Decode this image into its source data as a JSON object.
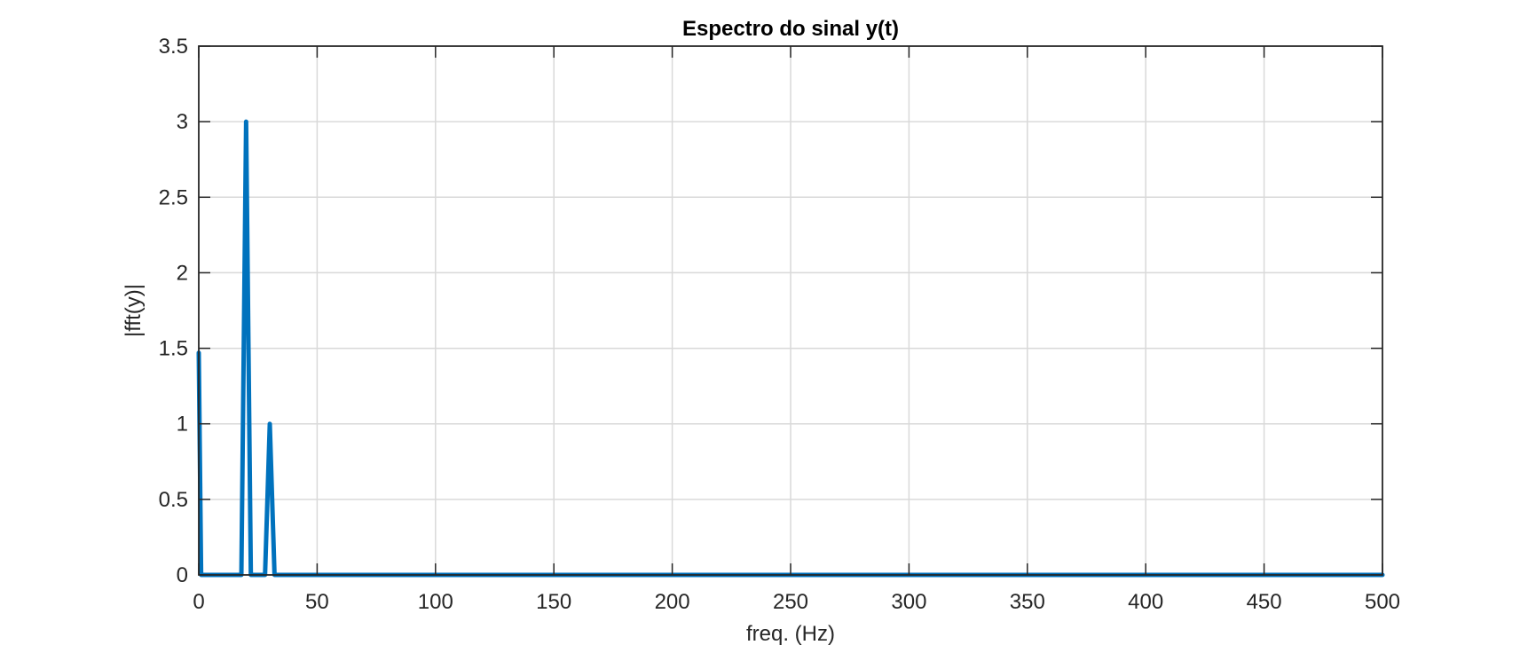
{
  "chart_data": {
    "type": "line",
    "title": "Espectro do sinal y(t)",
    "xlabel": "freq. (Hz)",
    "ylabel": "|fft(y)|",
    "xlim": [
      0,
      500
    ],
    "ylim": [
      0,
      3.5
    ],
    "grid": true,
    "x_ticks": [
      0,
      50,
      100,
      150,
      200,
      250,
      300,
      350,
      400,
      450,
      500
    ],
    "x_tick_labels": [
      "0",
      "50",
      "100",
      "150",
      "200",
      "250",
      "300",
      "350",
      "400",
      "450",
      "500"
    ],
    "y_ticks": [
      0,
      0.5,
      1,
      1.5,
      2,
      2.5,
      3,
      3.5
    ],
    "y_tick_labels": [
      "0",
      "0.5",
      "1",
      "1.5",
      "2",
      "2.5",
      "3",
      "3.5"
    ],
    "series": [
      {
        "name": "|fft(y)|",
        "color": "#0072BD",
        "x": [
          0,
          1,
          18,
          20,
          22,
          28,
          30,
          32,
          500
        ],
        "y": [
          1.47,
          0,
          0,
          3,
          0,
          0,
          1,
          0,
          0
        ]
      }
    ]
  }
}
